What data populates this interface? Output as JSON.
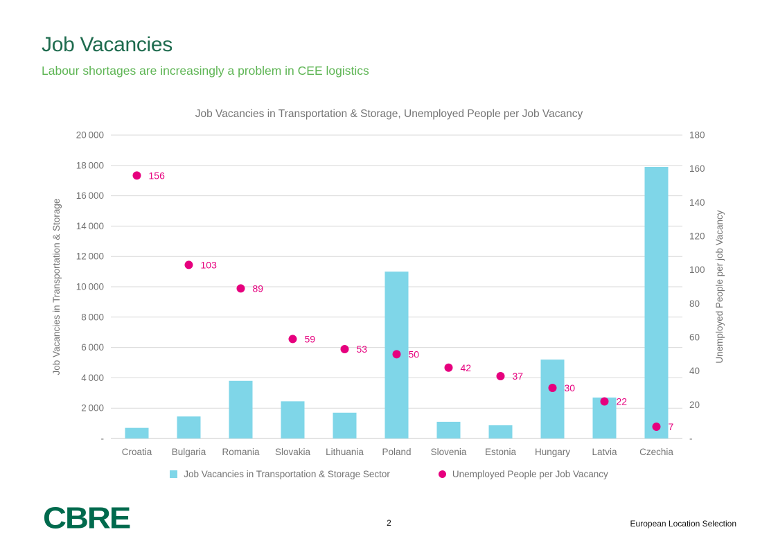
{
  "slide": {
    "title": "Job Vacancies",
    "subtitle": "Labour shortages are increasingly a problem in CEE logistics",
    "logo_text": "CBRE",
    "page_number": "2",
    "footer_right": "European Location Selection"
  },
  "colors": {
    "title_green": "#1e6b4e",
    "subtitle_green": "#5eb554",
    "bar_blue": "#7fd6e8",
    "point_magenta": "#e6007e",
    "axis_gray": "#737373",
    "gridline": "#d9d9d9",
    "axis_line": "#c9c9c9",
    "logo_green": "#006a4d"
  },
  "chart_data": {
    "type": "combo-bar-scatter",
    "title": "Job Vacancies in Transportation & Storage, Unemployed People per Job Vacancy",
    "categories": [
      "Croatia",
      "Bulgaria",
      "Romania",
      "Slovakia",
      "Lithuania",
      "Poland",
      "Slovenia",
      "Estonia",
      "Hungary",
      "Latvia",
      "Czechia"
    ],
    "series": [
      {
        "name": "Job Vacancies in Transportation & Storage Sector",
        "type": "bar",
        "axis": "left",
        "values": [
          700,
          1450,
          3800,
          2450,
          1700,
          11000,
          1100,
          870,
          5200,
          2700,
          17900
        ]
      },
      {
        "name": "Unemployed People per Job Vacancy",
        "type": "scatter",
        "axis": "right",
        "values": [
          156,
          103,
          89,
          59,
          53,
          50,
          42,
          37,
          30,
          22,
          7
        ],
        "data_labels": true
      }
    ],
    "left_axis": {
      "label": "Job Vacancies in Transportation & Storage",
      "min": 0,
      "max": 20000,
      "step": 2000,
      "zero_label": "-"
    },
    "right_axis": {
      "label": "Unemployed People per job Vacancy",
      "min": 0,
      "max": 180,
      "step": 20,
      "zero_label": "-"
    },
    "grid": true,
    "legend_position": "bottom"
  }
}
